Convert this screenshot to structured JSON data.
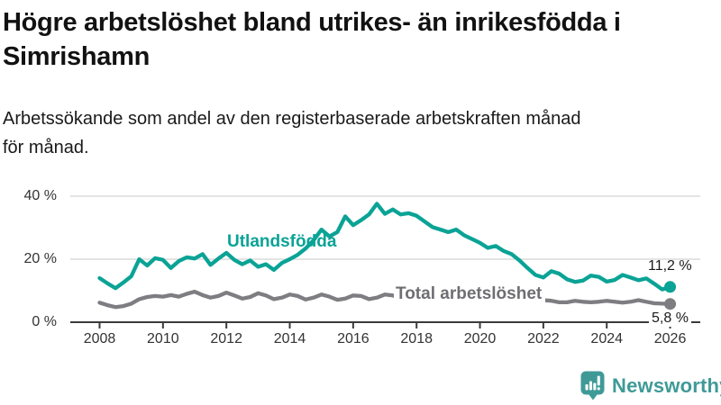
{
  "title_lines": [
    "Högre arbetslöshet bland utrikes- än inrikesfödda i",
    "Simrishamn"
  ],
  "subtitle_lines": [
    "Arbetssökande som andel av den registerbaserade arbetskraften månad",
    "för månad."
  ],
  "chart_data": {
    "type": "line",
    "x_unit": "decimal_year",
    "x_start": 2008,
    "x_step_years": 0.25,
    "x_ticks": [
      2008,
      2010,
      2012,
      2014,
      2016,
      2018,
      2020,
      2022,
      2024,
      2026
    ],
    "y_ticks": [
      {
        "value": 0,
        "label": "0 %"
      },
      {
        "value": 20,
        "label": "20 %"
      },
      {
        "value": 40,
        "label": "40 %"
      }
    ],
    "ylim": [
      0,
      40
    ],
    "grid": "horizontal",
    "legend": "inline-labels",
    "xlabel": "",
    "ylabel": "",
    "series": [
      {
        "name": "Utlandsfödda",
        "color": "#0aa396",
        "end_label": "11,2 %",
        "end_value": 11.2,
        "values": [
          14.0,
          12.3,
          10.8,
          12.6,
          14.6,
          20.0,
          18.0,
          20.3,
          19.8,
          17.2,
          19.4,
          20.6,
          20.2,
          21.6,
          18.2,
          20.2,
          22.0,
          19.8,
          18.4,
          19.6,
          17.6,
          18.4,
          16.6,
          18.8,
          20.0,
          21.4,
          23.4,
          26.0,
          29.4,
          27.2,
          28.6,
          33.6,
          30.8,
          32.4,
          34.2,
          37.6,
          34.4,
          35.8,
          34.2,
          34.6,
          33.8,
          32.0,
          30.2,
          29.4,
          28.6,
          29.4,
          27.6,
          26.4,
          25.2,
          23.6,
          24.2,
          22.6,
          21.6,
          19.6,
          17.2,
          15.0,
          14.2,
          16.2,
          15.4,
          13.6,
          12.8,
          13.2,
          14.8,
          14.4,
          12.9,
          13.4,
          15.0,
          14.2,
          13.3,
          13.9,
          12.2,
          10.4,
          11.2
        ]
      },
      {
        "name": "Total arbetslöshet",
        "color": "#7d7d82",
        "end_label": "5,8 %",
        "end_value": 5.8,
        "values": [
          6.2,
          5.4,
          4.8,
          5.1,
          5.9,
          7.3,
          8.0,
          8.3,
          8.1,
          8.6,
          8.1,
          9.0,
          9.7,
          8.6,
          7.8,
          8.3,
          9.4,
          8.5,
          7.5,
          8.0,
          9.2,
          8.5,
          7.3,
          7.8,
          8.8,
          8.3,
          7.2,
          7.8,
          8.8,
          8.1,
          7.1,
          7.5,
          8.5,
          8.3,
          7.3,
          7.8,
          8.8,
          8.5,
          7.5,
          8.0,
          8.5,
          8.0,
          7.1,
          7.3,
          8.0,
          7.8,
          7.0,
          7.3,
          7.8,
          8.3,
          8.5,
          8.0,
          8.3,
          7.8,
          7.0,
          6.8,
          7.0,
          6.8,
          6.3,
          6.3,
          6.8,
          6.5,
          6.3,
          6.5,
          6.8,
          6.5,
          6.2,
          6.5,
          7.0,
          6.5,
          6.0,
          5.9,
          5.8
        ]
      }
    ]
  },
  "footer": {
    "brand": "Newsworthy",
    "logo_icon": "bar-chart-speech-bubble",
    "brand_color": "#3f9a97"
  },
  "colors": {
    "accent_teal": "#0aa396",
    "series_gray": "#7d7d82",
    "grid": "#dcdcdc",
    "axis": "#3b3b3b",
    "tick_text": "#333333",
    "title_text": "#121212",
    "value_text": "#1a1a1a"
  }
}
